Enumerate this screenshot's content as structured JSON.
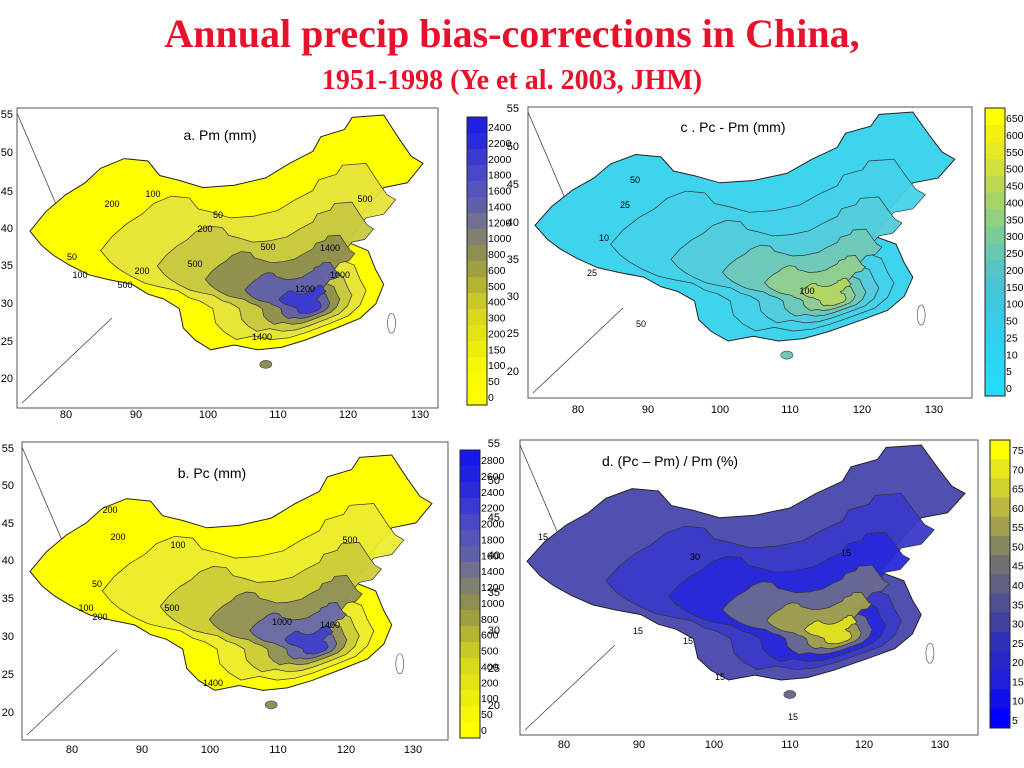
{
  "title": "Annual precip bias-corrections in China,",
  "subtitle": "1951-1998 (Ye et al. 2003, JHM)",
  "chart_data": [
    {
      "type": "heatmap",
      "title": "a.  Pm  (mm)",
      "x_ticks": [
        "80",
        "90",
        "100",
        "110",
        "120",
        "130"
      ],
      "y_ticks": [
        "55",
        "50",
        "45",
        "40",
        "35",
        "30",
        "25",
        "20"
      ],
      "contour_labels": [
        "200",
        "100",
        "50",
        "200",
        "500",
        "50",
        "100",
        "200",
        "500",
        "500",
        "1000",
        "1200",
        "1400",
        "1400",
        "500"
      ],
      "colorbar": [
        "2400",
        "2200",
        "2000",
        "1800",
        "1600",
        "1400",
        "1200",
        "1000",
        "800",
        "600",
        "500",
        "400",
        "300",
        "200",
        "150",
        "100",
        "50",
        "0"
      ],
      "colors": [
        "#2020e0",
        "#2a2ad8",
        "#3a3ad0",
        "#4848c8",
        "#5555bb",
        "#6060aa",
        "#707090",
        "#808070",
        "#8e8e50",
        "#a0a040",
        "#b4b430",
        "#c8c828",
        "#d8d81c",
        "#e4e414",
        "#eeee0c",
        "#f6f606",
        "#fbfb03",
        "#ffff00"
      ]
    },
    {
      "type": "heatmap",
      "title": "b.  Pc (mm)",
      "x_ticks": [
        "80",
        "90",
        "100",
        "110",
        "120",
        "130"
      ],
      "y_ticks": [
        "55",
        "50",
        "45",
        "40",
        "35",
        "30",
        "25",
        "20"
      ],
      "contour_labels": [
        "200",
        "200",
        "100",
        "50",
        "100",
        "200",
        "500",
        "500",
        "1000",
        "1400",
        "1400"
      ],
      "colorbar": [
        "2800",
        "2600",
        "2400",
        "2200",
        "2000",
        "1800",
        "1600",
        "1400",
        "1200",
        "1000",
        "800",
        "600",
        "500",
        "400",
        "200",
        "100",
        "50",
        "0"
      ],
      "colors": [
        "#1818e8",
        "#2020e0",
        "#2a2ad8",
        "#3a3ad0",
        "#4848c8",
        "#5555bb",
        "#6060aa",
        "#707090",
        "#808070",
        "#8e8e50",
        "#a0a040",
        "#b4b430",
        "#c8c828",
        "#d8d81c",
        "#e4e414",
        "#eeee0c",
        "#f6f606",
        "#ffff00"
      ]
    },
    {
      "type": "heatmap",
      "title": "c .  Pc - Pm  (mm)",
      "x_ticks": [
        "80",
        "90",
        "100",
        "110",
        "120",
        "130"
      ],
      "y_ticks": [
        "55",
        "50",
        "45",
        "40",
        "35",
        "30",
        "25",
        "20"
      ],
      "contour_labels": [
        "50",
        "25",
        "10",
        "25",
        "50",
        "100"
      ],
      "colorbar": [
        "650",
        "600",
        "550",
        "500",
        "450",
        "400",
        "350",
        "300",
        "250",
        "200",
        "150",
        "100",
        "50",
        "25",
        "10",
        "5",
        "0"
      ],
      "colors": [
        "#ffff00",
        "#f4f010",
        "#e6e828",
        "#d2e040",
        "#bcd850",
        "#a6d468",
        "#90d080",
        "#7ccc98",
        "#68c8b0",
        "#56c4c4",
        "#48c4d4",
        "#3ec8e0",
        "#38cce8",
        "#32d0ee",
        "#2cd4f2",
        "#28d8f6",
        "#24dcfa"
      ]
    },
    {
      "type": "heatmap",
      "title": "d.  (Pc – Pm) / Pm (%)",
      "x_ticks": [
        "80",
        "90",
        "100",
        "110",
        "120",
        "130"
      ],
      "y_ticks": [
        "55",
        "50",
        "45",
        "40",
        "35",
        "30",
        "25",
        "20"
      ],
      "contour_labels": [
        "15",
        "30",
        "15",
        "15",
        "15",
        "15",
        "15"
      ],
      "colorbar": [
        "75",
        "70",
        "65",
        "60",
        "55",
        "50",
        "45",
        "40",
        "35",
        "30",
        "25",
        "20",
        "15",
        "10",
        "5"
      ],
      "colors": [
        "#ffff00",
        "#e8e820",
        "#d0d030",
        "#b8b840",
        "#a0a050",
        "#888860",
        "#707070",
        "#606080",
        "#505090",
        "#4040a0",
        "#3030b8",
        "#2828c8",
        "#2020d8",
        "#1010e8",
        "#0000ff"
      ]
    }
  ]
}
